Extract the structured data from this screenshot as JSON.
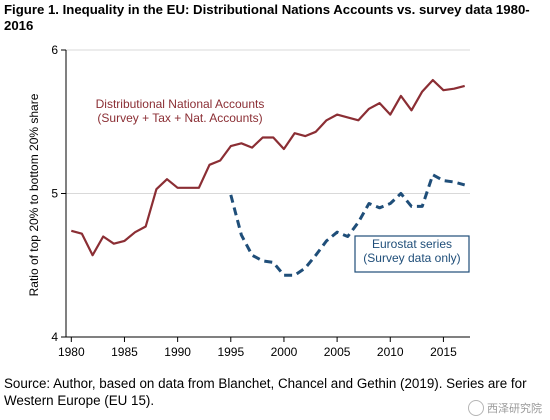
{
  "title": "Figure 1. Inequality in the EU: Distributional Nations Accounts vs. survey data 1980-2016",
  "source": "Source: Author, based on data from Blanchet, Chancel and Gethin (2019). Series are for Western Europe (EU 15).",
  "watermark": "西泽研究院",
  "chart_data": {
    "type": "line",
    "ylabel": "Ratio of top 20% to bottom 20% share",
    "ylim": [
      4,
      6
    ],
    "yticks": [
      4,
      5,
      6
    ],
    "xlim": [
      1979.5,
      2017.5
    ],
    "xticks": [
      1980,
      1985,
      1990,
      1995,
      2000,
      2005,
      2010,
      2015
    ],
    "grid": "horizontal",
    "series": [
      {
        "name": "Distributional National Accounts\n(Survey + Tax + Nat. Accounts)",
        "color": "#8b2e34",
        "style": "solid",
        "x": [
          1980,
          1981,
          1982,
          1983,
          1984,
          1985,
          1986,
          1987,
          1988,
          1989,
          1990,
          1991,
          1992,
          1993,
          1994,
          1995,
          1996,
          1997,
          1998,
          1999,
          2000,
          2001,
          2002,
          2003,
          2004,
          2005,
          2006,
          2007,
          2008,
          2009,
          2010,
          2011,
          2012,
          2013,
          2014,
          2015,
          2016,
          2017
        ],
        "values": [
          4.74,
          4.72,
          4.57,
          4.7,
          4.65,
          4.67,
          4.73,
          4.77,
          5.03,
          5.1,
          5.04,
          5.04,
          5.04,
          5.2,
          5.23,
          5.33,
          5.35,
          5.32,
          5.39,
          5.39,
          5.31,
          5.42,
          5.4,
          5.43,
          5.51,
          5.55,
          5.53,
          5.51,
          5.59,
          5.63,
          5.55,
          5.68,
          5.58,
          5.71,
          5.79,
          5.72,
          5.73,
          5.75
        ]
      },
      {
        "name": "Eurostat series\n(Survey data only)",
        "color": "#1f4e79",
        "style": "dashed",
        "x": [
          1995,
          1996,
          1997,
          1998,
          1999,
          2000,
          2001,
          2002,
          2003,
          2004,
          2005,
          2006,
          2007,
          2008,
          2009,
          2010,
          2011,
          2012,
          2013,
          2014,
          2015,
          2016,
          2017
        ],
        "values": [
          4.99,
          4.71,
          4.57,
          4.53,
          4.52,
          4.43,
          4.43,
          4.48,
          4.57,
          4.67,
          4.73,
          4.7,
          4.8,
          4.93,
          4.9,
          4.93,
          5.0,
          4.91,
          4.91,
          5.13,
          5.09,
          5.08,
          5.06
        ]
      }
    ]
  }
}
